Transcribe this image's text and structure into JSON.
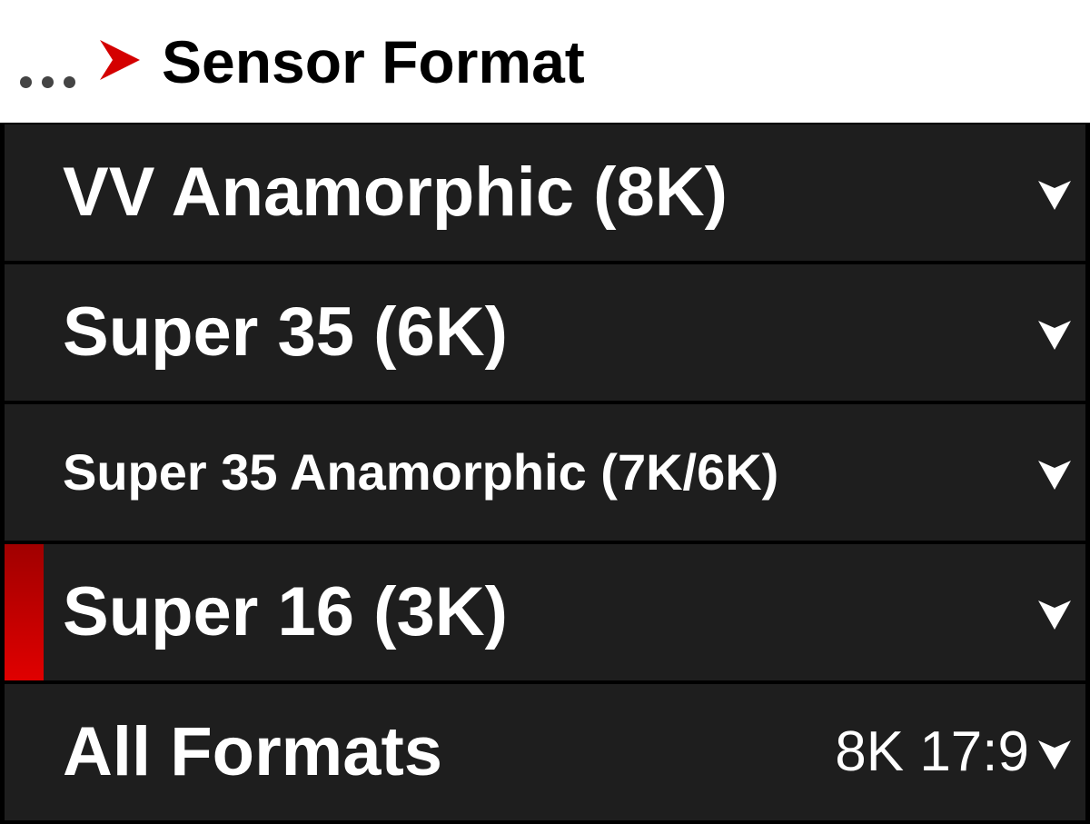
{
  "header": {
    "breadcrumb_icon": "ellipsis-icon",
    "separator_icon": "red-arrow-icon",
    "title": "Sensor Format"
  },
  "colors": {
    "accent": "#d40000",
    "row_bg": "#1e1e1e",
    "header_bg": "#ffffff"
  },
  "items": [
    {
      "label": "VV Anamorphic (8K)",
      "value": null,
      "selected": false
    },
    {
      "label": "Super 35 (6K)",
      "value": null,
      "selected": false
    },
    {
      "label": "Super 35 Anamorphic (7K/6K)",
      "value": null,
      "selected": false
    },
    {
      "label": "Super 16 (3K)",
      "value": null,
      "selected": true
    },
    {
      "label": "All Formats",
      "value": "8K 17:9",
      "selected": false
    }
  ]
}
